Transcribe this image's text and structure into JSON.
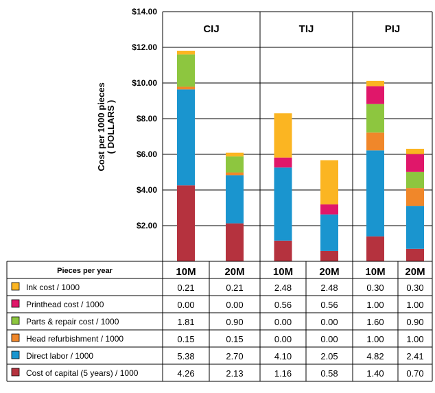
{
  "chart_data": {
    "type": "bar",
    "stacked": true,
    "ylabel": "Cost per 1000 pieces",
    "ylabel_unit": "( DOLLARS )",
    "yticks": [
      "$2.00",
      "$4.00",
      "$6.00",
      "$8.00",
      "$10.00",
      "$12.00",
      "$14.00"
    ],
    "ylim": [
      0,
      14
    ],
    "groups": [
      "CIJ",
      "TIJ",
      "PIJ"
    ],
    "categories": [
      "10M",
      "20M",
      "10M",
      "20M",
      "10M",
      "20M"
    ],
    "series": [
      {
        "name": "Cost of capital (5 years) / 1000",
        "color": "#b5323e",
        "values": [
          4.26,
          2.13,
          1.16,
          0.58,
          1.4,
          0.7
        ],
        "labels": [
          "4.26",
          "2.13",
          "1.16",
          "0.58",
          "1.40",
          "0.70"
        ]
      },
      {
        "name": "Direct labor / 1000",
        "color": "#1a95cf",
        "values": [
          5.38,
          2.7,
          4.1,
          2.05,
          4.82,
          2.41
        ],
        "labels": [
          "5.38",
          "2.70",
          "4.10",
          "2.05",
          "4.82",
          "2.41"
        ]
      },
      {
        "name": "Head refurbishment / 1000",
        "color": "#f0872a",
        "values": [
          0.15,
          0.15,
          0.0,
          0.0,
          1.0,
          1.0
        ],
        "labels": [
          "0.15",
          "0.15",
          "0.00",
          "0.00",
          "1.00",
          "1.00"
        ]
      },
      {
        "name": "Parts & repair cost / 1000",
        "color": "#8dc63f",
        "values": [
          1.81,
          0.9,
          0.0,
          0.0,
          1.6,
          0.9
        ],
        "labels": [
          "1.81",
          "0.90",
          "0.00",
          "0.00",
          "1.60",
          "0.90"
        ]
      },
      {
        "name": "Printhead cost / 1000",
        "color": "#e0176a",
        "values": [
          0.0,
          0.0,
          0.56,
          0.56,
          1.0,
          1.0
        ],
        "labels": [
          "0.00",
          "0.00",
          "0.56",
          "0.56",
          "1.00",
          "1.00"
        ]
      },
      {
        "name": "Ink cost / 1000",
        "color": "#fbb522",
        "values": [
          0.21,
          0.21,
          2.48,
          2.48,
          0.3,
          0.3
        ],
        "labels": [
          "0.21",
          "0.21",
          "2.48",
          "2.48",
          "0.30",
          "0.30"
        ]
      }
    ],
    "table": {
      "header_label": "Pieces per year",
      "row_order": [
        5,
        4,
        3,
        2,
        1,
        0
      ]
    },
    "grid": true
  }
}
